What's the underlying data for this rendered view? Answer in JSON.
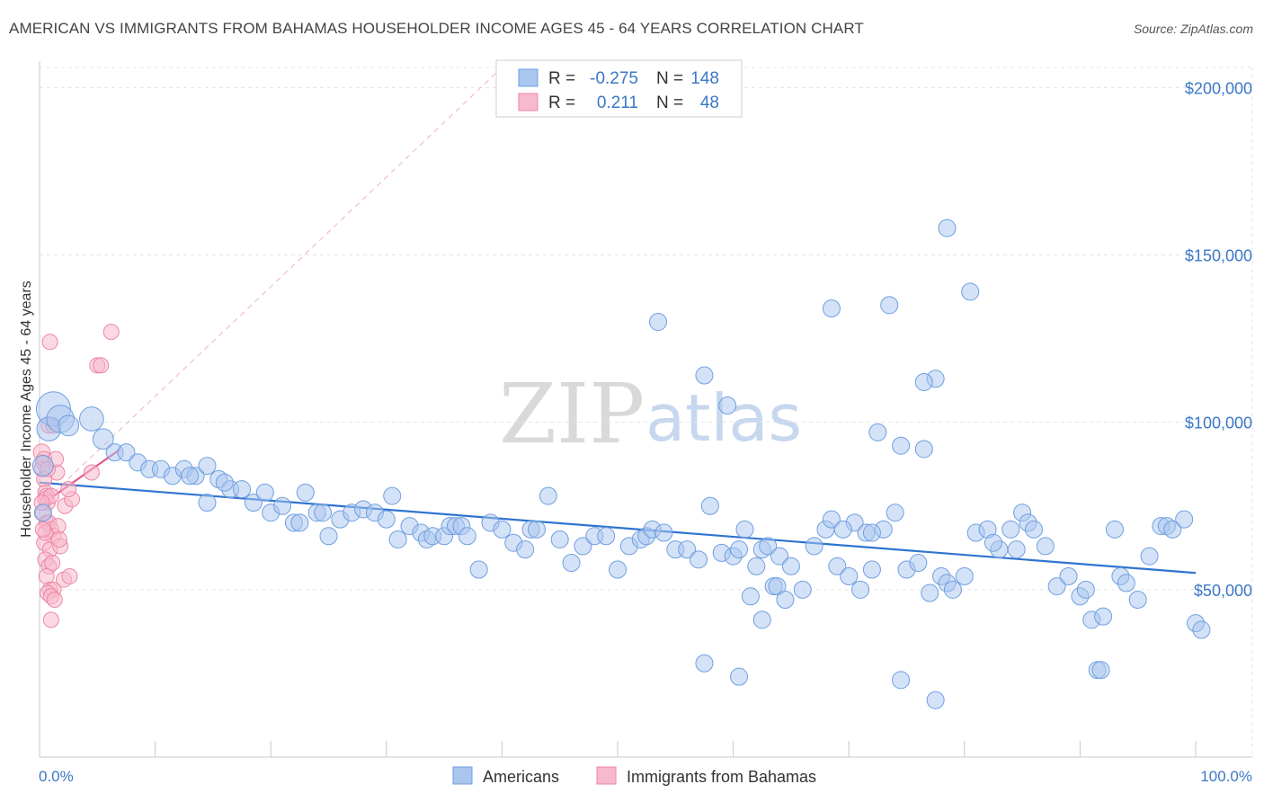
{
  "header": {
    "title": "AMERICAN VS IMMIGRANTS FROM BAHAMAS HOUSEHOLDER INCOME AGES 45 - 64 YEARS CORRELATION CHART",
    "source": "Source: ZipAtlas.com"
  },
  "watermark": {
    "zip": "ZIP",
    "atlas": "atlas"
  },
  "legend": {
    "r_label": "R =",
    "n_label": "N =",
    "americans": {
      "r": "-0.275",
      "n": "148"
    },
    "bahamas": {
      "r": "0.211",
      "n": "48"
    }
  },
  "colors": {
    "americans_fill": "#a9c6ef",
    "americans_stroke": "#6f9fe0",
    "americans_line": "#2f74d0",
    "bahamas_fill": "#f7b9cc",
    "bahamas_stroke": "#ec87a6",
    "bahamas_line": "#e8588a",
    "tick_text": "#3b78c7"
  },
  "chart_data": {
    "type": "scatter",
    "title": "AMERICAN VS IMMIGRANTS FROM BAHAMAS HOUSEHOLDER INCOME AGES 45 - 64 YEARS CORRELATION CHART",
    "xlabel": "",
    "ylabel": "Householder Income Ages 45 - 64 years",
    "xlim": [
      0,
      100
    ],
    "ylim": [
      0,
      206000
    ],
    "x_tick_labels": [
      "0.0%",
      "100.0%"
    ],
    "y_ticks": [
      50000,
      100000,
      150000,
      200000
    ],
    "y_tick_labels": [
      "$50,000",
      "$100,000",
      "$150,000",
      "$200,000"
    ],
    "grid": true,
    "legend_position": "top-center and bottom",
    "series": [
      {
        "name": "Americans",
        "trend": {
          "x": [
            0,
            100
          ],
          "y": [
            82000,
            55000
          ]
        },
        "points": [
          [
            1.2,
            104,
            20
          ],
          [
            0.8,
            98,
            14
          ],
          [
            1.8,
            101,
            16
          ],
          [
            4.5,
            101,
            14
          ],
          [
            0.3,
            87,
            12
          ],
          [
            2.5,
            99,
            12
          ],
          [
            5.5,
            95,
            12
          ],
          [
            0.3,
            73,
            10
          ],
          [
            6.5,
            91,
            10
          ],
          [
            7.5,
            91,
            10
          ],
          [
            8.5,
            88,
            10
          ],
          [
            9.5,
            86,
            10
          ],
          [
            10.5,
            86,
            10
          ],
          [
            11.5,
            84,
            10
          ],
          [
            12.5,
            86,
            10
          ],
          [
            13.5,
            84,
            10
          ],
          [
            14.5,
            87,
            10
          ],
          [
            15.5,
            83,
            10
          ],
          [
            16.5,
            80,
            10
          ],
          [
            17.5,
            80,
            10
          ],
          [
            13,
            84,
            10
          ],
          [
            14.5,
            76,
            10
          ],
          [
            16,
            82,
            10
          ],
          [
            18.5,
            76,
            10
          ],
          [
            19.5,
            79,
            10
          ],
          [
            20,
            73,
            10
          ],
          [
            21,
            75,
            10
          ],
          [
            22,
            70,
            10
          ],
          [
            23,
            79,
            10
          ],
          [
            24,
            73,
            10
          ],
          [
            25,
            66,
            10
          ],
          [
            26,
            71,
            10
          ],
          [
            27,
            73,
            10
          ],
          [
            28,
            74,
            10
          ],
          [
            22.5,
            70,
            10
          ],
          [
            24.5,
            73,
            10
          ],
          [
            29,
            73,
            10
          ],
          [
            30,
            71,
            10
          ],
          [
            30.5,
            78,
            10
          ],
          [
            31,
            65,
            10
          ],
          [
            32,
            69,
            10
          ],
          [
            33,
            67,
            10
          ],
          [
            33.5,
            65,
            10
          ],
          [
            34,
            66,
            10
          ],
          [
            35,
            66,
            10
          ],
          [
            35.5,
            69,
            10
          ],
          [
            36,
            69,
            10
          ],
          [
            36.5,
            69,
            10
          ],
          [
            37,
            66,
            10
          ],
          [
            38,
            56,
            10
          ],
          [
            39,
            70,
            10
          ],
          [
            40,
            68,
            10
          ],
          [
            41,
            64,
            10
          ],
          [
            42,
            62,
            10
          ],
          [
            42.5,
            68,
            10
          ],
          [
            43,
            68,
            10
          ],
          [
            44,
            78,
            10
          ],
          [
            45,
            65,
            10
          ],
          [
            46,
            58,
            10
          ],
          [
            47,
            63,
            10
          ],
          [
            48,
            66,
            10
          ],
          [
            49,
            66,
            10
          ],
          [
            50,
            56,
            10
          ],
          [
            51,
            63,
            10
          ],
          [
            52,
            65,
            10
          ],
          [
            52.5,
            66,
            10
          ],
          [
            53,
            68,
            10
          ],
          [
            54,
            67,
            10
          ],
          [
            55,
            62,
            10
          ],
          [
            56,
            62,
            10
          ],
          [
            57,
            59,
            10
          ],
          [
            58,
            75,
            10
          ],
          [
            59,
            61,
            10
          ],
          [
            60,
            60,
            10
          ],
          [
            60.5,
            62,
            10
          ],
          [
            61,
            68,
            10
          ],
          [
            62,
            57,
            10
          ],
          [
            62.5,
            62,
            10
          ],
          [
            63,
            63,
            10
          ],
          [
            64,
            60,
            10
          ],
          [
            65,
            57,
            10
          ],
          [
            66,
            50,
            10
          ],
          [
            67,
            63,
            10
          ],
          [
            68,
            68,
            10
          ],
          [
            69,
            57,
            10
          ],
          [
            70,
            54,
            10
          ],
          [
            71,
            50,
            10
          ],
          [
            72,
            56,
            10
          ],
          [
            73,
            68,
            10
          ],
          [
            74,
            73,
            10
          ],
          [
            75,
            56,
            10
          ],
          [
            76,
            58,
            10
          ],
          [
            77,
            49,
            10
          ],
          [
            78,
            54,
            10
          ],
          [
            78.5,
            52,
            10
          ],
          [
            79,
            50,
            10
          ],
          [
            80,
            54,
            10
          ],
          [
            81,
            67,
            10
          ],
          [
            82,
            68,
            10
          ],
          [
            83,
            62,
            10
          ],
          [
            84,
            68,
            10
          ],
          [
            82.5,
            64,
            10
          ],
          [
            84.5,
            62,
            10
          ],
          [
            85,
            73,
            10
          ],
          [
            85.5,
            70,
            10
          ],
          [
            86,
            68,
            10
          ],
          [
            87,
            63,
            10
          ],
          [
            88,
            51,
            10
          ],
          [
            89,
            54,
            10
          ],
          [
            90,
            48,
            10
          ],
          [
            90.5,
            50,
            10
          ],
          [
            91,
            41,
            10
          ],
          [
            92,
            42,
            10
          ],
          [
            93,
            68,
            10
          ],
          [
            93.5,
            54,
            10
          ],
          [
            94,
            52,
            10
          ],
          [
            95,
            47,
            10
          ],
          [
            96,
            60,
            10
          ],
          [
            97,
            69,
            10
          ],
          [
            97.5,
            69,
            10
          ],
          [
            98,
            68,
            10
          ],
          [
            99,
            71,
            10
          ],
          [
            100,
            40,
            10
          ],
          [
            100.5,
            38,
            10
          ],
          [
            53.5,
            130,
            10
          ],
          [
            57.5,
            114,
            10
          ],
          [
            59.5,
            105,
            10
          ],
          [
            68.5,
            134,
            10
          ],
          [
            73.5,
            135,
            10
          ],
          [
            77.5,
            113,
            10
          ],
          [
            76.5,
            112,
            10
          ],
          [
            78.5,
            158,
            10
          ],
          [
            80.5,
            139,
            10
          ],
          [
            72.5,
            97,
            10
          ],
          [
            74.5,
            93,
            10
          ],
          [
            76.5,
            92,
            10
          ],
          [
            57.5,
            28,
            10
          ],
          [
            60.5,
            24,
            10
          ],
          [
            74.5,
            23,
            10
          ],
          [
            77.5,
            17,
            10
          ],
          [
            91.5,
            26,
            10
          ],
          [
            91.8,
            26,
            10
          ],
          [
            61.5,
            48,
            10
          ],
          [
            62.5,
            41,
            10
          ],
          [
            63.5,
            51,
            10
          ],
          [
            63.8,
            51,
            10
          ],
          [
            64.5,
            47,
            10
          ],
          [
            68.5,
            71,
            10
          ],
          [
            70.5,
            70,
            10
          ],
          [
            69.5,
            68,
            10
          ],
          [
            71.5,
            67,
            10
          ],
          [
            72.0,
            67,
            10
          ]
        ]
      },
      {
        "name": "Immigrants from Bahamas",
        "trend": {
          "x": [
            0,
            7
          ],
          "y": [
            75000,
            92000
          ]
        },
        "trend_extension": {
          "x": [
            0,
            40
          ],
          "y": [
            75000,
            206000
          ]
        },
        "points": [
          [
            0.2,
            91,
            11
          ],
          [
            0.3,
            88,
            10
          ],
          [
            0.2,
            86,
            10
          ],
          [
            0.4,
            83,
            10
          ],
          [
            0.5,
            79,
            10
          ],
          [
            0.6,
            78,
            10
          ],
          [
            0.5,
            77,
            10
          ],
          [
            0.7,
            76,
            10
          ],
          [
            0.3,
            73,
            10
          ],
          [
            0.6,
            70,
            10
          ],
          [
            0.8,
            70,
            10
          ],
          [
            1.0,
            68,
            10
          ],
          [
            1.2,
            66,
            10
          ],
          [
            0.4,
            64,
            10
          ],
          [
            0.9,
            62,
            10
          ],
          [
            0.5,
            59,
            10
          ],
          [
            0.8,
            57,
            10
          ],
          [
            1.1,
            58,
            10
          ],
          [
            0.6,
            54,
            10
          ],
          [
            0.9,
            50,
            10
          ],
          [
            1.2,
            50,
            10
          ],
          [
            0.7,
            49,
            10
          ],
          [
            1.0,
            48,
            10
          ],
          [
            1.3,
            47,
            10
          ],
          [
            1.0,
            41,
            10
          ],
          [
            1.8,
            63,
            10
          ],
          [
            2.2,
            75,
            10
          ],
          [
            2.8,
            77,
            10
          ],
          [
            1.5,
            85,
            10
          ],
          [
            2.5,
            80,
            10
          ],
          [
            0.8,
            99,
            10
          ],
          [
            1.2,
            99,
            10
          ],
          [
            0.9,
            124,
            10
          ],
          [
            5.0,
            117,
            10
          ],
          [
            5.3,
            117,
            10
          ],
          [
            6.2,
            127,
            10
          ],
          [
            2.1,
            53,
            10
          ],
          [
            1.6,
            69,
            10
          ],
          [
            0.4,
            89,
            10
          ],
          [
            0.7,
            86,
            10
          ],
          [
            1.4,
            89,
            10
          ],
          [
            4.5,
            85,
            10
          ],
          [
            1.0,
            78,
            10
          ],
          [
            0.5,
            67,
            10
          ],
          [
            1.7,
            65,
            10
          ],
          [
            0.2,
            76,
            10
          ],
          [
            0.3,
            68,
            10
          ],
          [
            2.6,
            54,
            10
          ]
        ]
      }
    ]
  }
}
